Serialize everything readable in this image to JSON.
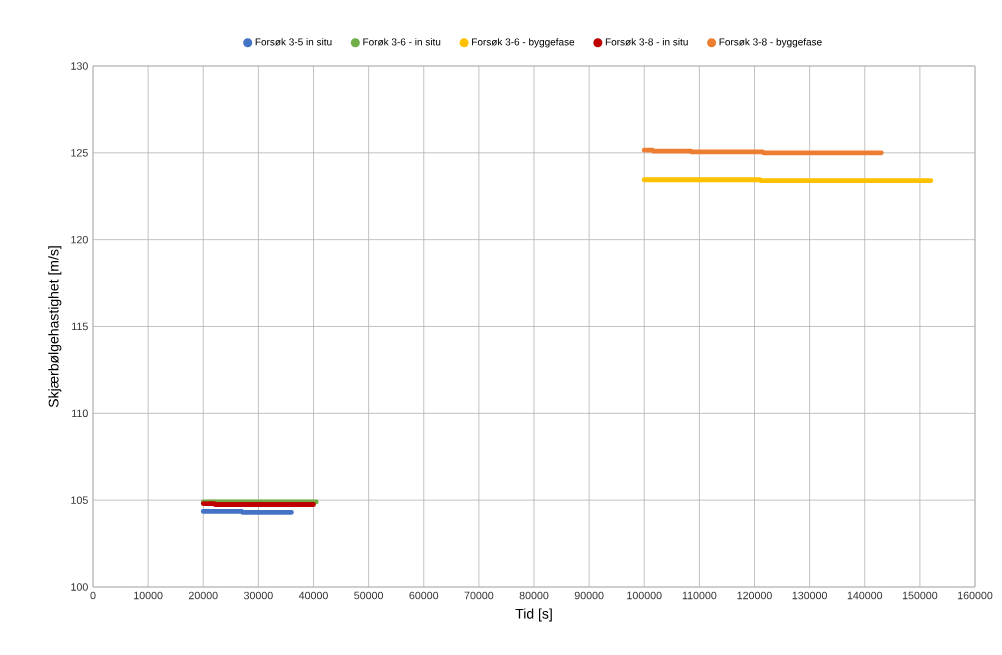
{
  "chart_data": {
    "type": "line",
    "xlabel": "Tid [s]",
    "ylabel": "Skjærbølgehastighet [m/s]",
    "xlim": [
      0,
      160000
    ],
    "ylim": [
      100,
      130
    ],
    "xticks": [
      0,
      10000,
      20000,
      30000,
      40000,
      50000,
      60000,
      70000,
      80000,
      90000,
      100000,
      110000,
      120000,
      130000,
      140000,
      150000,
      160000
    ],
    "yticks": [
      100,
      105,
      110,
      115,
      120,
      125,
      130
    ],
    "grid": true,
    "legend": "top",
    "marker": "none",
    "line_style": "solid",
    "series": [
      {
        "name": "Forsøk 3-5 in situ",
        "color": "#4472c4",
        "x": [
          20000,
          27000,
          27100,
          36000
        ],
        "values": [
          104.35,
          104.35,
          104.3,
          104.3
        ]
      },
      {
        "name": "Forøk 3-6 - in situ",
        "color": "#70ad47",
        "x": [
          20000,
          40500
        ],
        "values": [
          104.9,
          104.9
        ]
      },
      {
        "name": "Forsøk 3-6 - byggefase",
        "color": "#ffc000",
        "x": [
          100000,
          121000,
          121100,
          152000
        ],
        "values": [
          123.45,
          123.45,
          123.4,
          123.4
        ]
      },
      {
        "name": "Forsøk 3-8 - in situ",
        "color": "#c00000",
        "x": [
          20000,
          22000,
          22100,
          40000
        ],
        "values": [
          104.8,
          104.8,
          104.75,
          104.75
        ]
      },
      {
        "name": "Forsøk 3-8 - byggefase",
        "color": "#ed7d31",
        "x": [
          100000,
          101500,
          101600,
          108500,
          108600,
          121500,
          121600,
          143000
        ],
        "values": [
          125.15,
          125.15,
          125.1,
          125.1,
          125.05,
          125.05,
          125.0,
          125.0
        ]
      }
    ]
  }
}
